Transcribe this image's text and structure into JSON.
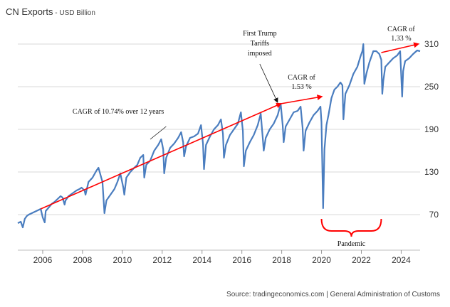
{
  "header": {
    "title": "CN Exports",
    "subtitle": "USD Billion"
  },
  "footer": {
    "source": "Source: tradingeconomics.com | General Administration of Customs"
  },
  "colors": {
    "series": "#4a7dbf",
    "annotation_arrow": "#ff0000",
    "grid": "#d9d9d9",
    "text": "#333333"
  },
  "chart_data": {
    "type": "line",
    "title": "CN Exports",
    "subtitle": "USD Billion",
    "xlabel": "",
    "ylabel": "",
    "xlim": [
      2004.75,
      2024.95
    ],
    "ylim": [
      20,
      340
    ],
    "grid": "horizontal",
    "x_ticks": [
      2006,
      2008,
      2010,
      2012,
      2014,
      2016,
      2018,
      2020,
      2022,
      2024
    ],
    "x_tick_labels": [
      "2006",
      "2008",
      "2010",
      "2012",
      "2014",
      "2016",
      "2018",
      "2020",
      "2022",
      "2024"
    ],
    "y_ticks": [
      70,
      130,
      190,
      250,
      310
    ],
    "y_tick_labels": [
      "70",
      "130",
      "190",
      "250",
      "310"
    ],
    "series": [
      {
        "name": "CN Exports",
        "x": [
          2004.75,
          2004.9,
          2005.0,
          2005.1,
          2005.2,
          2005.3,
          2005.45,
          2005.6,
          2005.75,
          2005.9,
          2006.0,
          2006.1,
          2006.15,
          2006.3,
          2006.45,
          2006.6,
          2006.75,
          2006.9,
          2007.0,
          2007.1,
          2007.15,
          2007.3,
          2007.5,
          2007.7,
          2007.85,
          2007.95,
          2008.1,
          2008.15,
          2008.3,
          2008.5,
          2008.7,
          2008.8,
          2009.0,
          2009.1,
          2009.2,
          2009.35,
          2009.6,
          2009.75,
          2009.9,
          2010.05,
          2010.1,
          2010.2,
          2010.4,
          2010.6,
          2010.75,
          2010.9,
          2011.05,
          2011.1,
          2011.2,
          2011.4,
          2011.6,
          2011.8,
          2011.95,
          2012.05,
          2012.1,
          2012.2,
          2012.4,
          2012.6,
          2012.8,
          2012.95,
          2013.05,
          2013.1,
          2013.2,
          2013.4,
          2013.6,
          2013.8,
          2013.95,
          2014.05,
          2014.1,
          2014.2,
          2014.4,
          2014.6,
          2014.8,
          2014.95,
          2015.05,
          2015.1,
          2015.2,
          2015.4,
          2015.6,
          2015.8,
          2015.95,
          2016.05,
          2016.1,
          2016.2,
          2016.4,
          2016.6,
          2016.8,
          2016.95,
          2017.05,
          2017.1,
          2017.2,
          2017.4,
          2017.6,
          2017.8,
          2017.95,
          2018.05,
          2018.1,
          2018.2,
          2018.4,
          2018.6,
          2018.8,
          2018.95,
          2019.05,
          2019.1,
          2019.2,
          2019.4,
          2019.6,
          2019.8,
          2019.95,
          2020.0,
          2020.08,
          2020.15,
          2020.25,
          2020.35,
          2020.5,
          2020.65,
          2020.8,
          2020.95,
          2021.05,
          2021.1,
          2021.2,
          2021.4,
          2021.6,
          2021.8,
          2021.95,
          2022.05,
          2022.1,
          2022.15,
          2022.25,
          2022.4,
          2022.6,
          2022.75,
          2022.9,
          2023.0,
          2023.05,
          2023.1,
          2023.2,
          2023.4,
          2023.6,
          2023.8,
          2023.95,
          2024.05,
          2024.1,
          2024.2,
          2024.4,
          2024.6,
          2024.8,
          2024.95
        ],
        "values": [
          58,
          60,
          52,
          64,
          68,
          70,
          72,
          74,
          76,
          78,
          66,
          59,
          75,
          80,
          85,
          88,
          92,
          96,
          94,
          84,
          90,
          96,
          100,
          104,
          106,
          108,
          104,
          98,
          116,
          122,
          132,
          136,
          116,
          72,
          90,
          96,
          106,
          116,
          128,
          108,
          98,
          122,
          130,
          136,
          140,
          150,
          154,
          122,
          140,
          146,
          160,
          168,
          176,
          162,
          128,
          150,
          164,
          170,
          178,
          186,
          172,
          152,
          166,
          178,
          180,
          184,
          196,
          170,
          134,
          168,
          180,
          190,
          196,
          204,
          184,
          150,
          168,
          182,
          190,
          198,
          214,
          188,
          138,
          160,
          172,
          182,
          196,
          212,
          178,
          160,
          178,
          190,
          198,
          210,
          226,
          196,
          172,
          194,
          204,
          214,
          216,
          222,
          192,
          160,
          188,
          200,
          210,
          216,
          222,
          200,
          79,
          162,
          196,
          210,
          234,
          246,
          250,
          256,
          252,
          204,
          240,
          252,
          268,
          278,
          292,
          300,
          310,
          254,
          268,
          284,
          300,
          300,
          296,
          288,
          240,
          258,
          278,
          284,
          290,
          294,
          300,
          236,
          272,
          286,
          290,
          296,
          301,
          300
        ]
      }
    ],
    "annotations": {
      "trend_1": {
        "label": "CAGR of 10.74% over 12 years",
        "from": [
          2005.9,
          78
        ],
        "to": [
          2017.95,
          226
        ]
      },
      "trend_2": {
        "label_lines": [
          "CAGR of",
          "1.53 %"
        ],
        "from": [
          2017.95,
          226
        ],
        "to": [
          2020.0,
          236
        ]
      },
      "trend_3": {
        "label_lines": [
          "CAGR of",
          "1.33 %"
        ],
        "from": [
          2023.0,
          298
        ],
        "to": [
          2024.85,
          310
        ]
      },
      "tariffs": {
        "label_lines": [
          "First Trump",
          "Tariffs",
          "imposed"
        ],
        "pointer_to": [
          2017.9,
          226
        ]
      },
      "pandemic": {
        "label": "Pandemic",
        "span": [
          2020.0,
          2023.0
        ]
      }
    }
  }
}
